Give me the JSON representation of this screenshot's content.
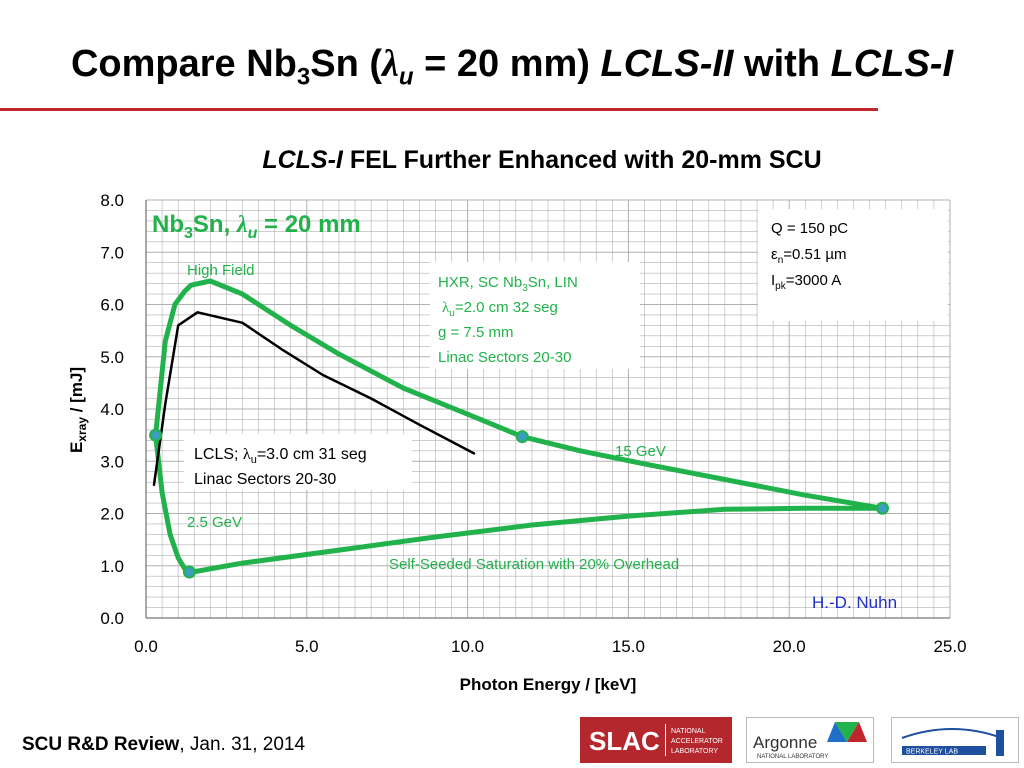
{
  "slide": {
    "title_pre": "Compare Nb",
    "title_sub3": "3",
    "title_sn": "Sn (",
    "title_lambda": "λ",
    "title_u": "u",
    "title_mid": " = 20 mm) ",
    "title_lcls2": "LCLS-II",
    "title_with": " with ",
    "title_lcls1": "LCLS-I",
    "subtitle_italic": "LCLS-I",
    "subtitle_rest": " FEL Further Enhanced with 20-mm SCU",
    "footer_bold": "SCU R&D Review",
    "footer_rest": ",  Jan. 31, 2014"
  },
  "logos": {
    "slac": "SLAC",
    "slac_line1": "NATIONAL",
    "slac_line2": "ACCELERATOR",
    "slac_line3": "LABORATORY",
    "argonne": "Argonne",
    "argonne_sub": "NATIONAL LABORATORY",
    "berkeley": "BERKELEY LAB"
  },
  "colors": {
    "green": "#21b24b",
    "black": "#000000",
    "blue_credit": "#1f2fc8",
    "red_rule": "#c0272d",
    "grid": "#b0b0b0",
    "marker_fill": "#3a9fb8"
  },
  "chart_data": {
    "type": "line",
    "xlabel": "Photon Energy / [keV]",
    "ylabel_main": "E",
    "ylabel_sub": "xray",
    "ylabel_rest": " / [mJ]",
    "xlim": [
      0,
      25
    ],
    "ylim": [
      0,
      8
    ],
    "x_ticks": [
      "0.0",
      "5.0",
      "10.0",
      "15.0",
      "20.0",
      "25.0"
    ],
    "y_ticks": [
      "0.0",
      "1.0",
      "2.0",
      "3.0",
      "4.0",
      "5.0",
      "6.0",
      "7.0",
      "8.0"
    ],
    "grid": true,
    "series": [
      {
        "kind": "green_upper",
        "x": [
          0.3,
          0.6,
          0.9,
          1.2,
          1.4,
          2.0,
          3.0,
          4.5,
          6.0,
          8.0,
          10.0,
          11.7,
          13.5,
          15.5,
          18.0,
          20.5,
          22.9
        ],
        "y": [
          3.5,
          5.3,
          6.0,
          6.25,
          6.37,
          6.45,
          6.2,
          5.6,
          5.05,
          4.4,
          3.9,
          3.47,
          3.2,
          2.95,
          2.65,
          2.35,
          2.1
        ]
      },
      {
        "kind": "green_lower",
        "x": [
          0.3,
          0.5,
          0.75,
          1.0,
          1.2,
          1.45,
          3.0,
          6.0,
          9.0,
          12.0,
          15.0,
          18.0,
          20.5,
          22.9
        ],
        "y": [
          3.5,
          2.4,
          1.6,
          1.15,
          0.95,
          0.88,
          1.05,
          1.3,
          1.55,
          1.78,
          1.95,
          2.08,
          2.1,
          2.1
        ]
      },
      {
        "kind": "black_lcls",
        "x": [
          0.25,
          0.6,
          1.0,
          1.6,
          3.0,
          4.2,
          5.5,
          7.0,
          8.5,
          10.2
        ],
        "y": [
          2.55,
          4.1,
          5.6,
          5.85,
          5.65,
          5.15,
          4.65,
          4.2,
          3.7,
          3.15
        ]
      }
    ],
    "markers": [
      {
        "x": 0.3,
        "y": 3.5
      },
      {
        "x": 1.35,
        "y": 0.88
      },
      {
        "x": 11.7,
        "y": 3.47
      },
      {
        "x": 22.9,
        "y": 2.1
      }
    ],
    "annotations": {
      "nb3sn_a": "Nb",
      "nb3sn_sub": "3",
      "nb3sn_b": "Sn, ",
      "nb3sn_lambda": "λ",
      "nb3sn_u": "u",
      "nb3sn_c": " = 20 mm",
      "high_field": "High Field",
      "ev15": "15 GeV",
      "ev25": "2.5 GeV",
      "self_seeded": "Self-Seeded Saturation with 20% Overhead",
      "credit": "H.-D. Nuhn",
      "hxr_line1": "HXR, SC  Nb",
      "hxr_sub3": "3",
      "hxr_line1b": "Sn, LIN",
      "hxr_lambda": "λ",
      "hxr_u": "u",
      "hxr_line2b": "=2.0 cm 32 seg",
      "hxr_line3": "g = 7.5 mm",
      "hxr_line4": "Linac Sectors 20-30",
      "lcls_a": "LCLS;  ",
      "lcls_lambda": "λ",
      "lcls_u": "u",
      "lcls_b": "=3.0 cm 31 seg",
      "lcls_line2": "Linac Sectors 20-30",
      "params_q": "Q = 150 pC",
      "params_eps": "ε",
      "params_eps_sub": "n",
      "params_eps_rest": "=0.51 µm",
      "params_i": "I",
      "params_i_sub": "pk",
      "params_i_rest": "=3000 A"
    }
  }
}
